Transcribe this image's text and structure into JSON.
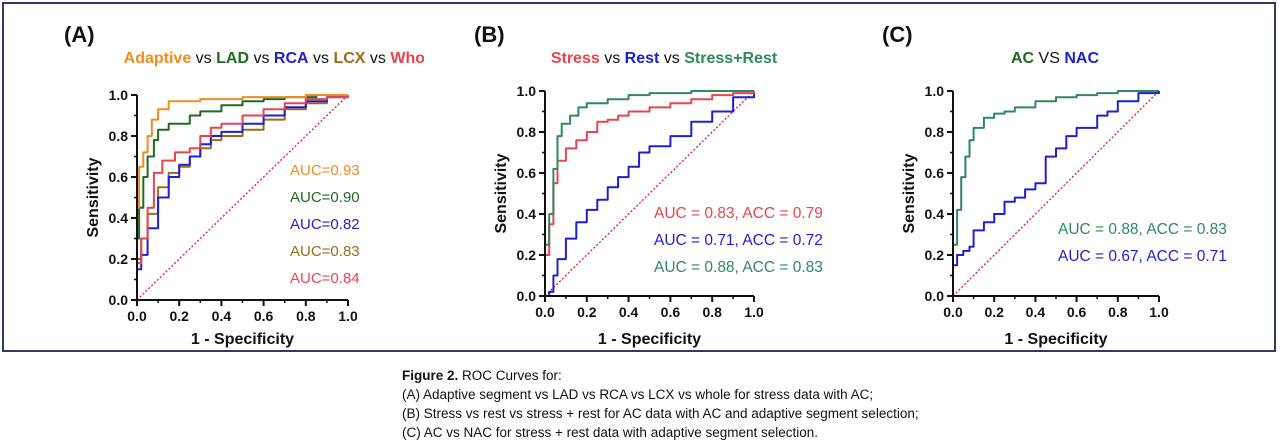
{
  "colors": {
    "orange": "#f28c1e",
    "dkgreen": "#1f6b1f",
    "blue": "#1f1fd6",
    "brown": "#9c6b1f",
    "red": "#e8454f",
    "teal": "#2f8a5a",
    "text": "#111111",
    "diag": "#e02020"
  },
  "caption": {
    "label": "Figure 2.",
    "title": "ROC Curves for:",
    "lines": [
      "(A) Adaptive segment vs LAD vs RCA vs LCX vs whole for stress data with AC;",
      "(B) Stress vs rest vs stress + rest for AC data with AC and adaptive segment selection;",
      "(C) AC vs NAC for stress + rest data with adaptive segment selection."
    ]
  },
  "chart_data": [
    {
      "type": "line",
      "panel_label": "(A)",
      "title_parts": [
        {
          "text": "Adaptive",
          "color": "#f28c1e"
        },
        {
          "text": " vs ",
          "color": "#111111"
        },
        {
          "text": "LAD",
          "color": "#1f6b1f"
        },
        {
          "text": " vs ",
          "color": "#111111"
        },
        {
          "text": "RCA",
          "color": "#1f1fd6"
        },
        {
          "text": " vs ",
          "color": "#111111"
        },
        {
          "text": "LCX",
          "color": "#9c6b1f"
        },
        {
          "text": " vs ",
          "color": "#111111"
        },
        {
          "text": "Whole",
          "color": "#e8454f"
        }
      ],
      "xlabel": "1 - Specificity",
      "ylabel": "Sensitivity",
      "xlim": [
        0,
        1
      ],
      "ylim": [
        0,
        1
      ],
      "ticks": [
        "0.0",
        "0.2",
        "0.4",
        "0.6",
        "0.8",
        "1.0"
      ],
      "annotations": [
        {
          "text": "AUC=0.93",
          "color": "#f28c1e"
        },
        {
          "text": "AUC=0.90",
          "color": "#1f6b1f"
        },
        {
          "text": "AUC=0.82",
          "color": "#1f1fd6"
        },
        {
          "text": "AUC=0.83",
          "color": "#9c6b1f"
        },
        {
          "text": "AUC=0.84",
          "color": "#e8454f"
        }
      ],
      "series": [
        {
          "color": "#9c6b1f",
          "points": [
            [
              0,
              0
            ],
            [
              0,
              0.2
            ],
            [
              0.02,
              0.3
            ],
            [
              0.05,
              0.42
            ],
            [
              0.1,
              0.55
            ],
            [
              0.15,
              0.62
            ],
            [
              0.2,
              0.65
            ],
            [
              0.25,
              0.7
            ],
            [
              0.3,
              0.74
            ],
            [
              0.35,
              0.78
            ],
            [
              0.4,
              0.8
            ],
            [
              0.5,
              0.83
            ],
            [
              0.6,
              0.88
            ],
            [
              0.7,
              0.93
            ],
            [
              0.8,
              0.96
            ],
            [
              0.9,
              0.99
            ],
            [
              1,
              1
            ]
          ]
        },
        {
          "color": "#1f1fd6",
          "points": [
            [
              0,
              0
            ],
            [
              0,
              0.15
            ],
            [
              0.02,
              0.22
            ],
            [
              0.05,
              0.35
            ],
            [
              0.1,
              0.5
            ],
            [
              0.15,
              0.6
            ],
            [
              0.2,
              0.66
            ],
            [
              0.25,
              0.7
            ],
            [
              0.3,
              0.76
            ],
            [
              0.35,
              0.8
            ],
            [
              0.4,
              0.82
            ],
            [
              0.5,
              0.86
            ],
            [
              0.6,
              0.9
            ],
            [
              0.7,
              0.94
            ],
            [
              0.8,
              0.97
            ],
            [
              0.9,
              0.99
            ],
            [
              1,
              1
            ]
          ]
        },
        {
          "color": "#e8454f",
          "points": [
            [
              0,
              0
            ],
            [
              0,
              0.18
            ],
            [
              0.02,
              0.3
            ],
            [
              0.05,
              0.45
            ],
            [
              0.08,
              0.62
            ],
            [
              0.12,
              0.68
            ],
            [
              0.18,
              0.72
            ],
            [
              0.25,
              0.74
            ],
            [
              0.3,
              0.8
            ],
            [
              0.35,
              0.84
            ],
            [
              0.4,
              0.86
            ],
            [
              0.5,
              0.9
            ],
            [
              0.6,
              0.93
            ],
            [
              0.7,
              0.96
            ],
            [
              0.8,
              0.98
            ],
            [
              0.9,
              0.99
            ],
            [
              1,
              1
            ]
          ]
        },
        {
          "color": "#1f6b1f",
          "points": [
            [
              0,
              0
            ],
            [
              0,
              0.3
            ],
            [
              0.01,
              0.45
            ],
            [
              0.03,
              0.6
            ],
            [
              0.05,
              0.7
            ],
            [
              0.08,
              0.78
            ],
            [
              0.1,
              0.83
            ],
            [
              0.15,
              0.86
            ],
            [
              0.2,
              0.86
            ],
            [
              0.25,
              0.9
            ],
            [
              0.3,
              0.92
            ],
            [
              0.4,
              0.95
            ],
            [
              0.5,
              0.97
            ],
            [
              0.6,
              0.98
            ],
            [
              0.7,
              0.99
            ],
            [
              0.85,
              1
            ],
            [
              1,
              1
            ]
          ]
        },
        {
          "color": "#f28c1e",
          "points": [
            [
              0,
              0
            ],
            [
              0,
              0.45
            ],
            [
              0.01,
              0.65
            ],
            [
              0.03,
              0.72
            ],
            [
              0.05,
              0.8
            ],
            [
              0.07,
              0.88
            ],
            [
              0.1,
              0.93
            ],
            [
              0.15,
              0.97
            ],
            [
              0.2,
              0.97
            ],
            [
              0.3,
              0.98
            ],
            [
              0.4,
              0.98
            ],
            [
              0.5,
              0.99
            ],
            [
              0.6,
              0.99
            ],
            [
              0.7,
              0.99
            ],
            [
              0.8,
              1
            ],
            [
              1,
              1
            ]
          ]
        }
      ]
    },
    {
      "type": "line",
      "panel_label": "(B)",
      "title_parts": [
        {
          "text": "Stress",
          "color": "#e8454f"
        },
        {
          "text": " vs ",
          "color": "#111111"
        },
        {
          "text": "Rest",
          "color": "#1f1fd6"
        },
        {
          "text": " vs ",
          "color": "#111111"
        },
        {
          "text": "Stress+Rest",
          "color": "#2f8a5a"
        }
      ],
      "xlabel": "1 - Specificity",
      "ylabel": "Sensitivity",
      "xlim": [
        0,
        1
      ],
      "ylim": [
        0,
        1
      ],
      "ticks": [
        "0.0",
        "0.2",
        "0.4",
        "0.6",
        "0.8",
        "1.0"
      ],
      "annotations": [
        {
          "text": "AUC = 0.83, ACC = 0.79",
          "color": "#e8454f"
        },
        {
          "text": "AUC = 0.71, ACC = 0.72",
          "color": "#1f1fd6"
        },
        {
          "text": "AUC = 0.88, ACC = 0.83",
          "color": "#2f8a5a"
        }
      ],
      "series": [
        {
          "color": "#1f1fd6",
          "points": [
            [
              0,
              0
            ],
            [
              0.02,
              0.02
            ],
            [
              0.04,
              0.1
            ],
            [
              0.06,
              0.18
            ],
            [
              0.1,
              0.28
            ],
            [
              0.15,
              0.36
            ],
            [
              0.2,
              0.42
            ],
            [
              0.25,
              0.47
            ],
            [
              0.3,
              0.53
            ],
            [
              0.35,
              0.58
            ],
            [
              0.4,
              0.63
            ],
            [
              0.45,
              0.7
            ],
            [
              0.5,
              0.73
            ],
            [
              0.6,
              0.78
            ],
            [
              0.7,
              0.85
            ],
            [
              0.8,
              0.9
            ],
            [
              0.9,
              0.97
            ],
            [
              1,
              1
            ]
          ]
        },
        {
          "color": "#e8454f",
          "points": [
            [
              0,
              0
            ],
            [
              0,
              0.2
            ],
            [
              0.02,
              0.35
            ],
            [
              0.04,
              0.55
            ],
            [
              0.06,
              0.66
            ],
            [
              0.1,
              0.72
            ],
            [
              0.15,
              0.76
            ],
            [
              0.2,
              0.8
            ],
            [
              0.25,
              0.85
            ],
            [
              0.3,
              0.86
            ],
            [
              0.35,
              0.88
            ],
            [
              0.4,
              0.9
            ],
            [
              0.5,
              0.92
            ],
            [
              0.6,
              0.94
            ],
            [
              0.7,
              0.96
            ],
            [
              0.8,
              0.98
            ],
            [
              0.9,
              0.99
            ],
            [
              1,
              1
            ]
          ]
        },
        {
          "color": "#2f8a5a",
          "points": [
            [
              0,
              0
            ],
            [
              0,
              0.25
            ],
            [
              0.02,
              0.4
            ],
            [
              0.04,
              0.62
            ],
            [
              0.06,
              0.78
            ],
            [
              0.08,
              0.84
            ],
            [
              0.12,
              0.88
            ],
            [
              0.16,
              0.92
            ],
            [
              0.2,
              0.94
            ],
            [
              0.3,
              0.96
            ],
            [
              0.4,
              0.98
            ],
            [
              0.5,
              0.99
            ],
            [
              0.6,
              0.99
            ],
            [
              0.7,
              1
            ],
            [
              1,
              1
            ]
          ]
        }
      ]
    },
    {
      "type": "line",
      "panel_label": "(C)",
      "title_parts": [
        {
          "text": "AC",
          "color": "#1f6b1f"
        },
        {
          "text": " VS ",
          "color": "#111111"
        },
        {
          "text": "NAC",
          "color": "#1f1fd6"
        }
      ],
      "xlabel": "1 - Specificity",
      "ylabel": "Sensitivity",
      "xlim": [
        0,
        1
      ],
      "ylim": [
        0,
        1
      ],
      "ticks": [
        "0.0",
        "0.2",
        "0.4",
        "0.6",
        "0.8",
        "1.0"
      ],
      "annotations": [
        {
          "text": "AUC = 0.88, ACC = 0.83",
          "color": "#2f8a5a"
        },
        {
          "text": "AUC = 0.67, ACC = 0.71",
          "color": "#1f1fd6"
        }
      ],
      "series": [
        {
          "color": "#1f1fd6",
          "points": [
            [
              0,
              0
            ],
            [
              0,
              0.15
            ],
            [
              0.02,
              0.2
            ],
            [
              0.05,
              0.22
            ],
            [
              0.08,
              0.24
            ],
            [
              0.1,
              0.32
            ],
            [
              0.15,
              0.36
            ],
            [
              0.2,
              0.4
            ],
            [
              0.25,
              0.46
            ],
            [
              0.3,
              0.48
            ],
            [
              0.35,
              0.52
            ],
            [
              0.4,
              0.55
            ],
            [
              0.45,
              0.68
            ],
            [
              0.5,
              0.72
            ],
            [
              0.55,
              0.78
            ],
            [
              0.6,
              0.82
            ],
            [
              0.7,
              0.88
            ],
            [
              0.75,
              0.9
            ],
            [
              0.8,
              0.95
            ],
            [
              0.9,
              0.99
            ],
            [
              1,
              1
            ]
          ]
        },
        {
          "color": "#2f8a5a",
          "points": [
            [
              0,
              0
            ],
            [
              0,
              0.25
            ],
            [
              0.02,
              0.42
            ],
            [
              0.04,
              0.58
            ],
            [
              0.06,
              0.68
            ],
            [
              0.08,
              0.76
            ],
            [
              0.1,
              0.82
            ],
            [
              0.15,
              0.87
            ],
            [
              0.2,
              0.89
            ],
            [
              0.25,
              0.9
            ],
            [
              0.3,
              0.92
            ],
            [
              0.4,
              0.95
            ],
            [
              0.5,
              0.97
            ],
            [
              0.6,
              0.98
            ],
            [
              0.7,
              0.99
            ],
            [
              0.8,
              1
            ],
            [
              1,
              1
            ]
          ]
        }
      ]
    }
  ]
}
